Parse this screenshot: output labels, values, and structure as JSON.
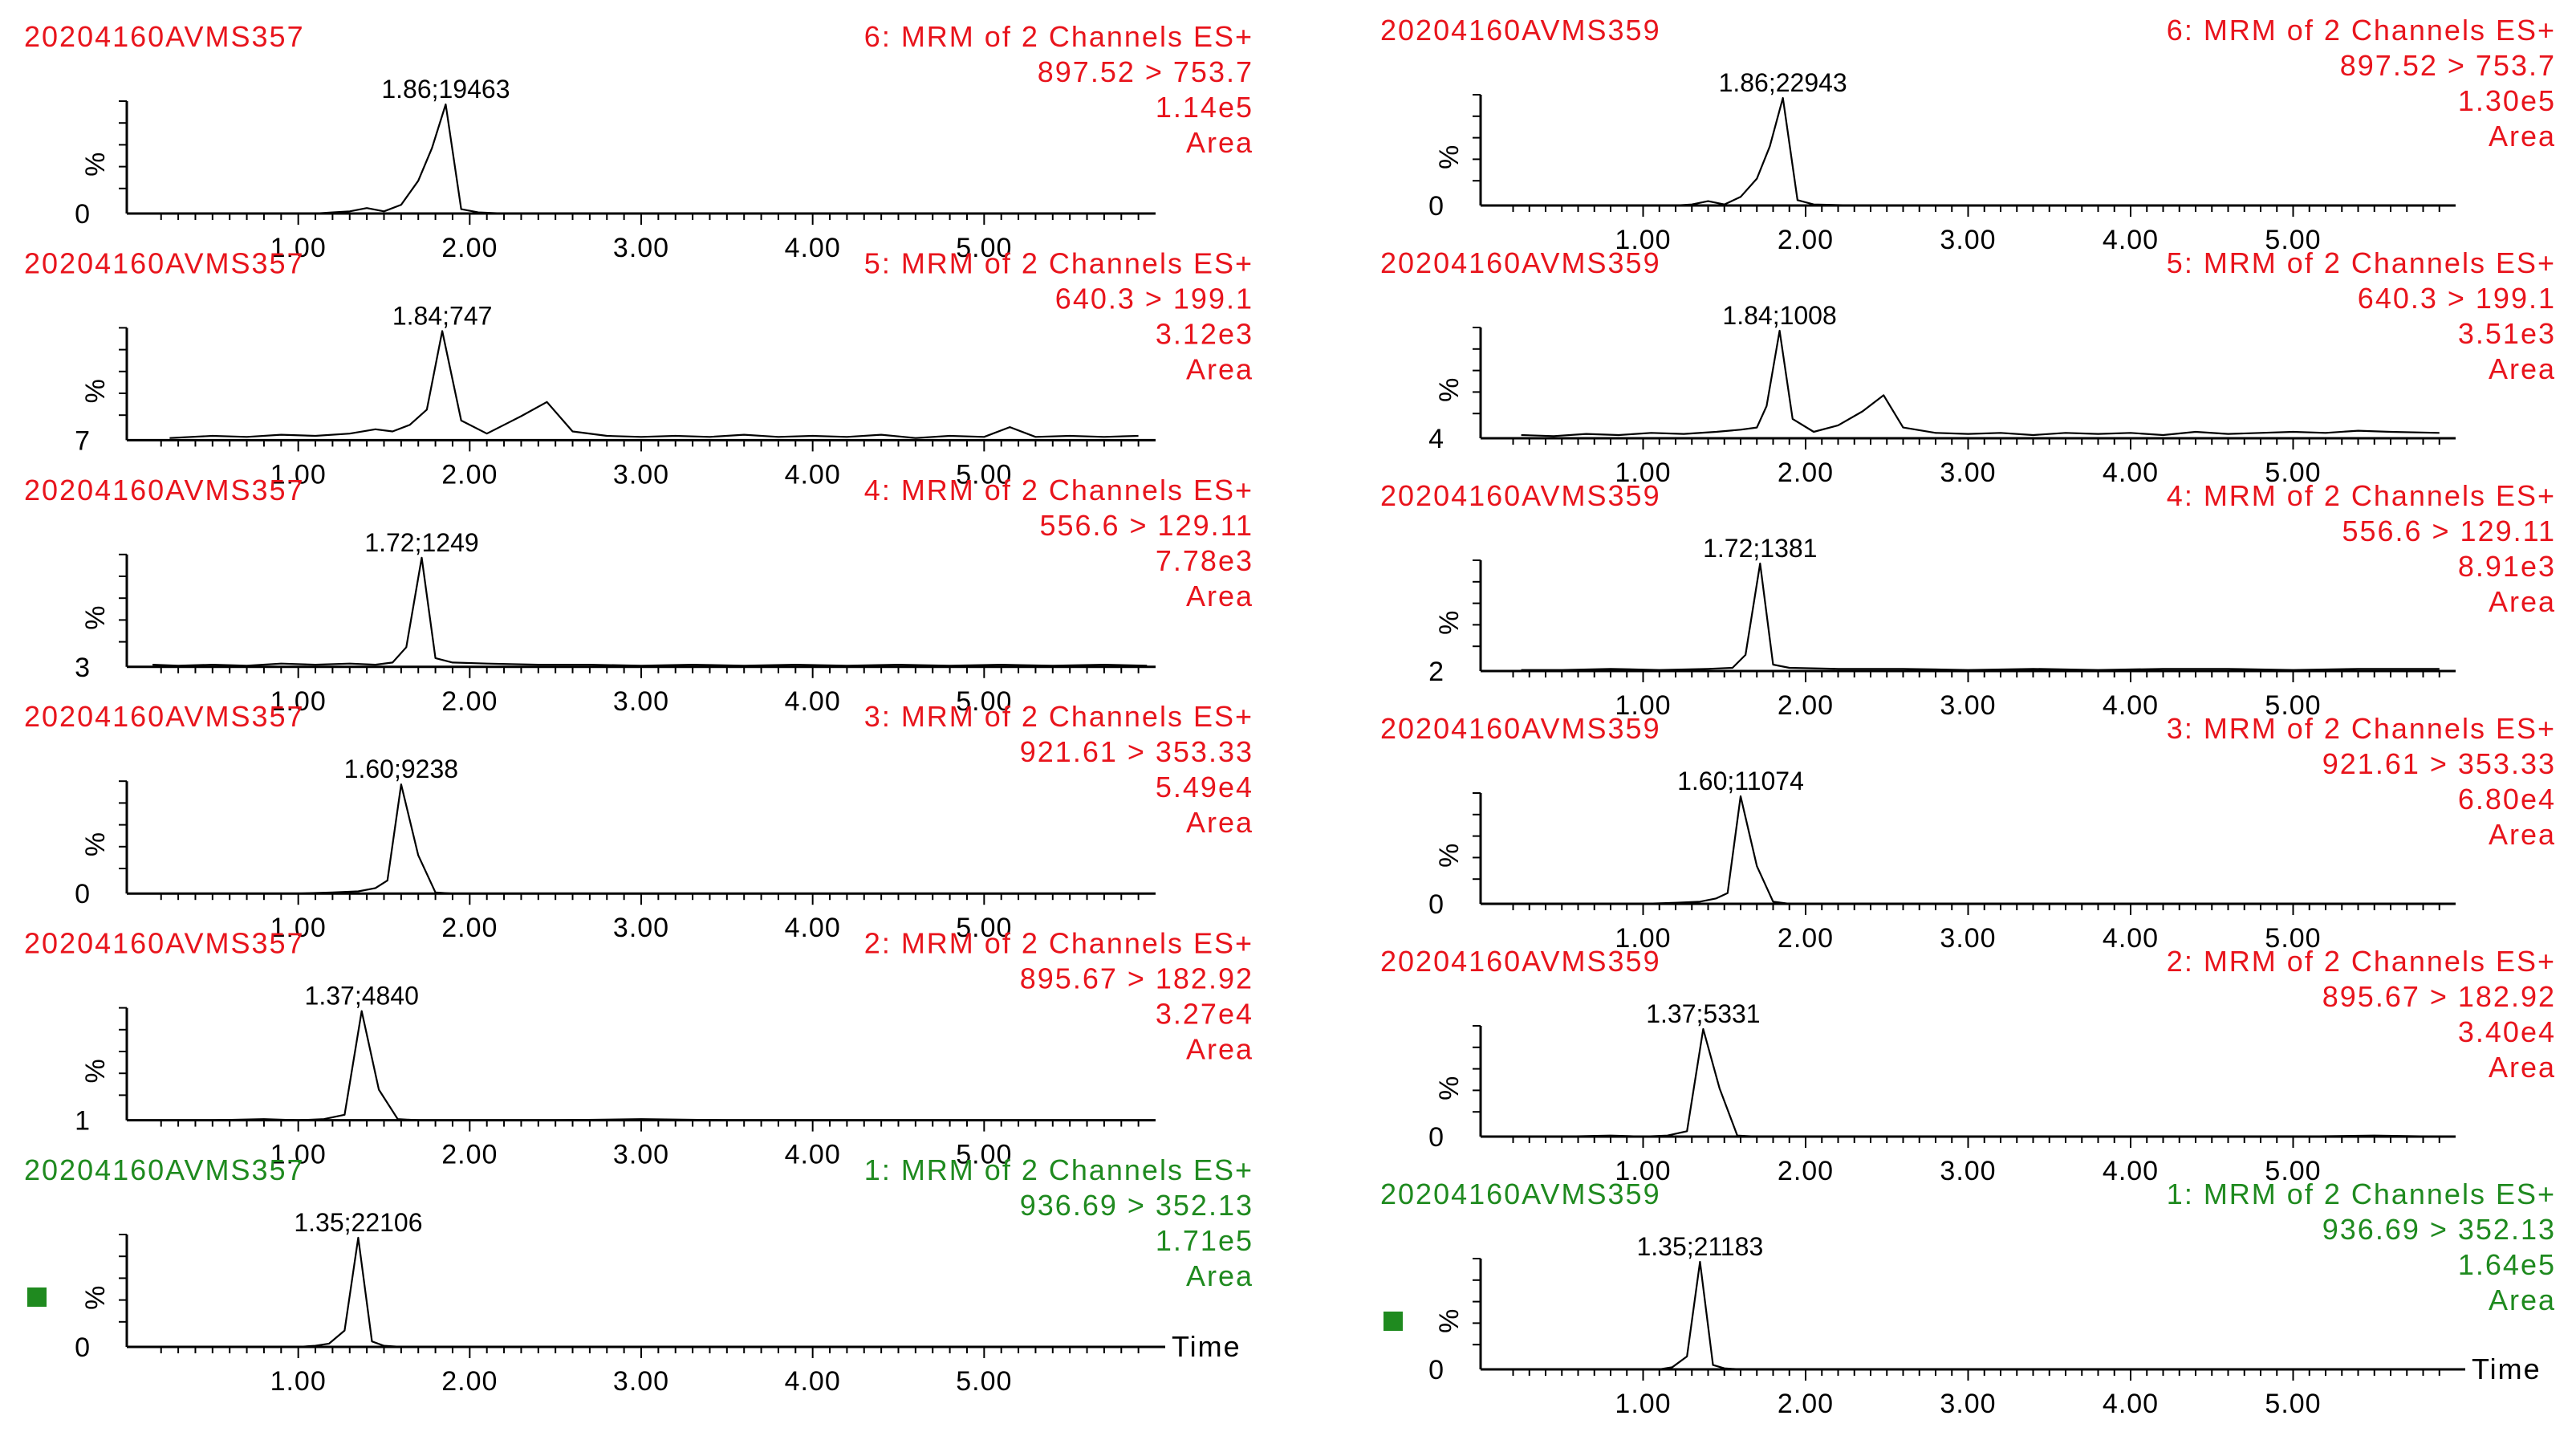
{
  "colors": {
    "analyte": "#e8141c",
    "internal_standard": "#1f8a1f",
    "trace": "#000000",
    "axis": "#000000"
  },
  "x_axis_label": "Time",
  "y_axis_symbol": "%",
  "marker_icon": "green-square-icon",
  "chart_data": [
    {
      "sample_id": "20204160AVMS357",
      "time_label": "Time",
      "panels": [
        {
          "type": "line",
          "channel": "6: MRM of 2 Channels ES+",
          "transition": "897.52 > 753.7",
          "intensity": "1.14e5",
          "mode": "Area",
          "peak_label": "1.86;19463",
          "peak_rt": 1.86,
          "y_min_label": "0",
          "color": "#e8141c",
          "marker": false,
          "xlim": [
            0.0,
            6.0
          ],
          "xticks": [
            "1.00",
            "2.00",
            "3.00",
            "4.00",
            "5.00"
          ],
          "x": [
            0.25,
            0.4,
            0.6,
            0.8,
            1.0,
            1.1,
            1.2,
            1.3,
            1.4,
            1.5,
            1.6,
            1.7,
            1.78,
            1.86,
            1.95,
            2.05,
            2.2,
            2.5,
            3.0,
            3.5,
            4.0,
            4.5,
            5.0,
            5.5,
            5.9
          ],
          "y": [
            0,
            0,
            0,
            0,
            0,
            0,
            1,
            2,
            5,
            2,
            8,
            30,
            60,
            100,
            4,
            1,
            0,
            0,
            0,
            0,
            0,
            0,
            0,
            0,
            0
          ]
        },
        {
          "type": "line",
          "channel": "5: MRM of 2 Channels ES+",
          "transition": "640.3 > 199.1",
          "intensity": "3.12e3",
          "mode": "Area",
          "peak_label": "1.84;747",
          "peak_rt": 1.84,
          "y_min_label": "7",
          "color": "#e8141c",
          "marker": false,
          "xlim": [
            0.0,
            6.0
          ],
          "xticks": [
            "1.00",
            "2.00",
            "3.00",
            "4.00",
            "5.00"
          ],
          "x": [
            0.25,
            0.5,
            0.7,
            0.9,
            1.1,
            1.3,
            1.45,
            1.55,
            1.65,
            1.75,
            1.84,
            1.95,
            2.1,
            2.3,
            2.45,
            2.6,
            2.8,
            3.0,
            3.2,
            3.4,
            3.6,
            3.8,
            4.0,
            4.2,
            4.4,
            4.6,
            4.8,
            5.0,
            5.15,
            5.3,
            5.5,
            5.7,
            5.9
          ],
          "y": [
            2,
            4,
            3,
            5,
            4,
            6,
            10,
            8,
            14,
            28,
            100,
            18,
            6,
            22,
            35,
            8,
            4,
            3,
            4,
            3,
            5,
            3,
            4,
            3,
            5,
            2,
            4,
            3,
            12,
            3,
            4,
            3,
            4
          ]
        },
        {
          "type": "line",
          "channel": "4: MRM of 2 Channels ES+",
          "transition": "556.6 > 129.11",
          "intensity": "7.78e3",
          "mode": "Area",
          "peak_label": "1.72;1249",
          "peak_rt": 1.72,
          "y_min_label": "3",
          "color": "#e8141c",
          "marker": false,
          "xlim": [
            0.0,
            6.0
          ],
          "xticks": [
            "1.00",
            "2.00",
            "3.00",
            "4.00",
            "5.00"
          ],
          "x": [
            0.15,
            0.3,
            0.5,
            0.7,
            0.9,
            1.1,
            1.3,
            1.45,
            1.55,
            1.63,
            1.72,
            1.8,
            1.9,
            2.1,
            2.4,
            2.7,
            3.0,
            3.3,
            3.6,
            3.9,
            4.2,
            4.5,
            4.8,
            5.1,
            5.4,
            5.7,
            5.95
          ],
          "y": [
            2,
            1,
            2,
            1,
            3,
            2,
            3,
            2,
            4,
            18,
            100,
            8,
            4,
            3,
            2,
            2,
            1,
            2,
            1,
            2,
            1,
            2,
            1,
            2,
            1,
            2,
            1
          ]
        },
        {
          "type": "line",
          "channel": "3: MRM of 2 Channels ES+",
          "transition": "921.61 > 353.33",
          "intensity": "5.49e4",
          "mode": "Area",
          "peak_label": "1.60;9238",
          "peak_rt": 1.6,
          "y_min_label": "0",
          "color": "#e8141c",
          "marker": false,
          "xlim": [
            0.0,
            6.0
          ],
          "xticks": [
            "1.00",
            "2.00",
            "3.00",
            "4.00",
            "5.00"
          ],
          "x": [
            0.25,
            0.5,
            0.8,
            1.0,
            1.2,
            1.35,
            1.45,
            1.52,
            1.6,
            1.7,
            1.8,
            1.9,
            2.2,
            2.6,
            3.0,
            3.5,
            4.0,
            4.5,
            5.0,
            5.5,
            5.9
          ],
          "y": [
            0,
            0,
            0,
            0,
            1,
            2,
            5,
            12,
            100,
            35,
            1,
            0,
            0,
            0,
            0,
            0,
            0,
            0,
            0,
            0,
            0
          ]
        },
        {
          "type": "line",
          "channel": "2: MRM of 2 Channels ES+",
          "transition": "895.67 > 182.92",
          "intensity": "3.27e4",
          "mode": "Area",
          "peak_label": "1.37;4840",
          "peak_rt": 1.37,
          "y_min_label": "1",
          "color": "#e8141c",
          "marker": false,
          "xlim": [
            0.0,
            6.0
          ],
          "xticks": [
            "1.00",
            "2.00",
            "3.00",
            "4.00",
            "5.00"
          ],
          "x": [
            0.25,
            0.5,
            0.8,
            1.0,
            1.15,
            1.27,
            1.37,
            1.47,
            1.58,
            1.7,
            2.0,
            2.5,
            3.0,
            3.5,
            4.0,
            4.5,
            5.0,
            5.5,
            5.9
          ],
          "y": [
            0,
            0,
            1,
            0,
            1,
            5,
            100,
            28,
            1,
            0,
            0,
            0,
            1,
            0,
            0,
            0,
            0,
            0,
            0
          ]
        },
        {
          "type": "line",
          "channel": "1: MRM of 2 Channels ES+",
          "transition": "936.69 > 352.13",
          "intensity": "1.71e5",
          "mode": "Area",
          "peak_label": "1.35;22106",
          "peak_rt": 1.35,
          "y_min_label": "0",
          "color": "#1f8a1f",
          "marker": true,
          "xlim": [
            0.0,
            6.0
          ],
          "xticks": [
            "1.00",
            "2.00",
            "3.00",
            "4.00",
            "5.00"
          ],
          "x": [
            0.25,
            0.5,
            0.8,
            1.0,
            1.1,
            1.18,
            1.27,
            1.35,
            1.43,
            1.5,
            1.6,
            1.8,
            2.2,
            2.8,
            3.4,
            4.0,
            4.6,
            5.2,
            5.9
          ],
          "y": [
            0,
            0,
            0,
            0,
            1,
            3,
            15,
            100,
            5,
            1,
            0,
            0,
            0,
            0,
            0,
            0,
            0,
            0,
            0
          ]
        }
      ]
    },
    {
      "sample_id": "20204160AVMS359",
      "time_label": "Time",
      "panels": [
        {
          "type": "line",
          "channel": "6: MRM of 2 Channels ES+",
          "transition": "897.52 > 753.7",
          "intensity": "1.30e5",
          "mode": "Area",
          "peak_label": "1.86;22943",
          "peak_rt": 1.86,
          "y_min_label": "0",
          "color": "#e8141c",
          "marker": false,
          "xlim": [
            0.0,
            6.0
          ],
          "xticks": [
            "1.00",
            "2.00",
            "3.00",
            "4.00",
            "5.00"
          ],
          "x": [
            0.25,
            0.5,
            0.8,
            1.0,
            1.2,
            1.3,
            1.4,
            1.5,
            1.6,
            1.7,
            1.78,
            1.86,
            1.95,
            2.05,
            2.3,
            2.6,
            3.0,
            3.5,
            4.0,
            4.5,
            5.0,
            5.5,
            5.9
          ],
          "y": [
            0,
            0,
            0,
            0,
            0,
            1,
            4,
            1,
            8,
            25,
            55,
            100,
            5,
            1,
            0,
            0,
            0,
            0,
            0,
            0,
            0,
            0,
            0
          ]
        },
        {
          "type": "line",
          "channel": "5: MRM of 2 Channels ES+",
          "transition": "640.3 > 199.1",
          "intensity": "3.51e3",
          "mode": "Area",
          "peak_label": "1.84;1008",
          "peak_rt": 1.84,
          "y_min_label": "4",
          "color": "#e8141c",
          "marker": false,
          "xlim": [
            0.0,
            6.0
          ],
          "xticks": [
            "1.00",
            "2.00",
            "3.00",
            "4.00",
            "5.00"
          ],
          "x": [
            0.25,
            0.45,
            0.65,
            0.85,
            1.05,
            1.25,
            1.45,
            1.6,
            1.7,
            1.76,
            1.84,
            1.92,
            2.05,
            2.2,
            2.35,
            2.48,
            2.6,
            2.8,
            3.0,
            3.2,
            3.4,
            3.6,
            3.8,
            4.0,
            4.2,
            4.4,
            4.6,
            4.8,
            5.0,
            5.2,
            5.4,
            5.6,
            5.9
          ],
          "y": [
            3,
            2,
            4,
            3,
            5,
            4,
            6,
            8,
            10,
            30,
            100,
            18,
            6,
            12,
            25,
            40,
            10,
            5,
            4,
            5,
            3,
            5,
            4,
            5,
            3,
            6,
            4,
            5,
            6,
            5,
            7,
            6,
            5
          ]
        },
        {
          "type": "line",
          "channel": "4: MRM of 2 Channels ES+",
          "transition": "556.6 > 129.11",
          "intensity": "8.91e3",
          "mode": "Area",
          "peak_label": "1.72;1381",
          "peak_rt": 1.72,
          "y_min_label": "2",
          "color": "#e8141c",
          "marker": false,
          "xlim": [
            0.0,
            6.0
          ],
          "xticks": [
            "1.00",
            "2.00",
            "3.00",
            "4.00",
            "5.00"
          ],
          "x": [
            0.25,
            0.5,
            0.8,
            1.1,
            1.4,
            1.55,
            1.63,
            1.72,
            1.8,
            1.9,
            2.2,
            2.6,
            3.0,
            3.4,
            3.8,
            4.2,
            4.6,
            5.0,
            5.4,
            5.7,
            5.9
          ],
          "y": [
            1,
            1,
            2,
            1,
            2,
            3,
            15,
            100,
            6,
            3,
            2,
            2,
            1,
            2,
            1,
            2,
            2,
            1,
            2,
            2,
            2
          ]
        },
        {
          "type": "line",
          "channel": "3: MRM of 2 Channels ES+",
          "transition": "921.61 > 353.33",
          "intensity": "6.80e4",
          "mode": "Area",
          "peak_label": "1.60;11074",
          "peak_rt": 1.6,
          "y_min_label": "0",
          "color": "#e8141c",
          "marker": false,
          "xlim": [
            0.0,
            6.0
          ],
          "xticks": [
            "1.00",
            "2.00",
            "3.00",
            "4.00",
            "5.00"
          ],
          "x": [
            0.25,
            0.5,
            0.8,
            1.0,
            1.2,
            1.35,
            1.45,
            1.52,
            1.6,
            1.7,
            1.8,
            1.9,
            2.2,
            2.6,
            3.0,
            3.5,
            4.0,
            4.5,
            5.0,
            5.5,
            5.9
          ],
          "y": [
            0,
            0,
            0,
            0,
            1,
            2,
            5,
            10,
            100,
            35,
            2,
            0,
            0,
            0,
            0,
            0,
            0,
            0,
            0,
            0,
            0
          ]
        },
        {
          "type": "line",
          "channel": "2: MRM of 2 Channels ES+",
          "transition": "895.67 > 182.92",
          "intensity": "3.40e4",
          "mode": "Area",
          "peak_label": "1.37;5331",
          "peak_rt": 1.37,
          "y_min_label": "0",
          "color": "#e8141c",
          "marker": false,
          "xlim": [
            0.0,
            6.0
          ],
          "xticks": [
            "1.00",
            "2.00",
            "3.00",
            "4.00",
            "5.00"
          ],
          "x": [
            0.25,
            0.5,
            0.8,
            1.0,
            1.15,
            1.27,
            1.37,
            1.47,
            1.58,
            1.7,
            2.0,
            2.5,
            3.0,
            3.5,
            4.0,
            4.5,
            5.0,
            5.5,
            5.9
          ],
          "y": [
            0,
            0,
            1,
            0,
            1,
            5,
            100,
            45,
            1,
            0,
            0,
            0,
            0,
            0,
            0,
            0,
            0,
            1,
            0
          ]
        },
        {
          "type": "line",
          "channel": "1: MRM of 2 Channels ES+",
          "transition": "936.69 > 352.13",
          "intensity": "1.64e5",
          "mode": "Area",
          "peak_label": "1.35;21183",
          "peak_rt": 1.35,
          "y_min_label": "0",
          "color": "#1f8a1f",
          "marker": true,
          "xlim": [
            0.0,
            6.0
          ],
          "xticks": [
            "1.00",
            "2.00",
            "3.00",
            "4.00",
            "5.00"
          ],
          "x": [
            0.25,
            0.5,
            0.8,
            1.0,
            1.1,
            1.18,
            1.27,
            1.35,
            1.43,
            1.5,
            1.6,
            1.8,
            2.2,
            2.8,
            3.4,
            4.0,
            4.6,
            5.2,
            5.9
          ],
          "y": [
            0,
            0,
            0,
            0,
            0,
            2,
            12,
            100,
            4,
            1,
            0,
            0,
            0,
            0,
            0,
            0,
            0,
            0,
            0
          ]
        }
      ]
    }
  ]
}
